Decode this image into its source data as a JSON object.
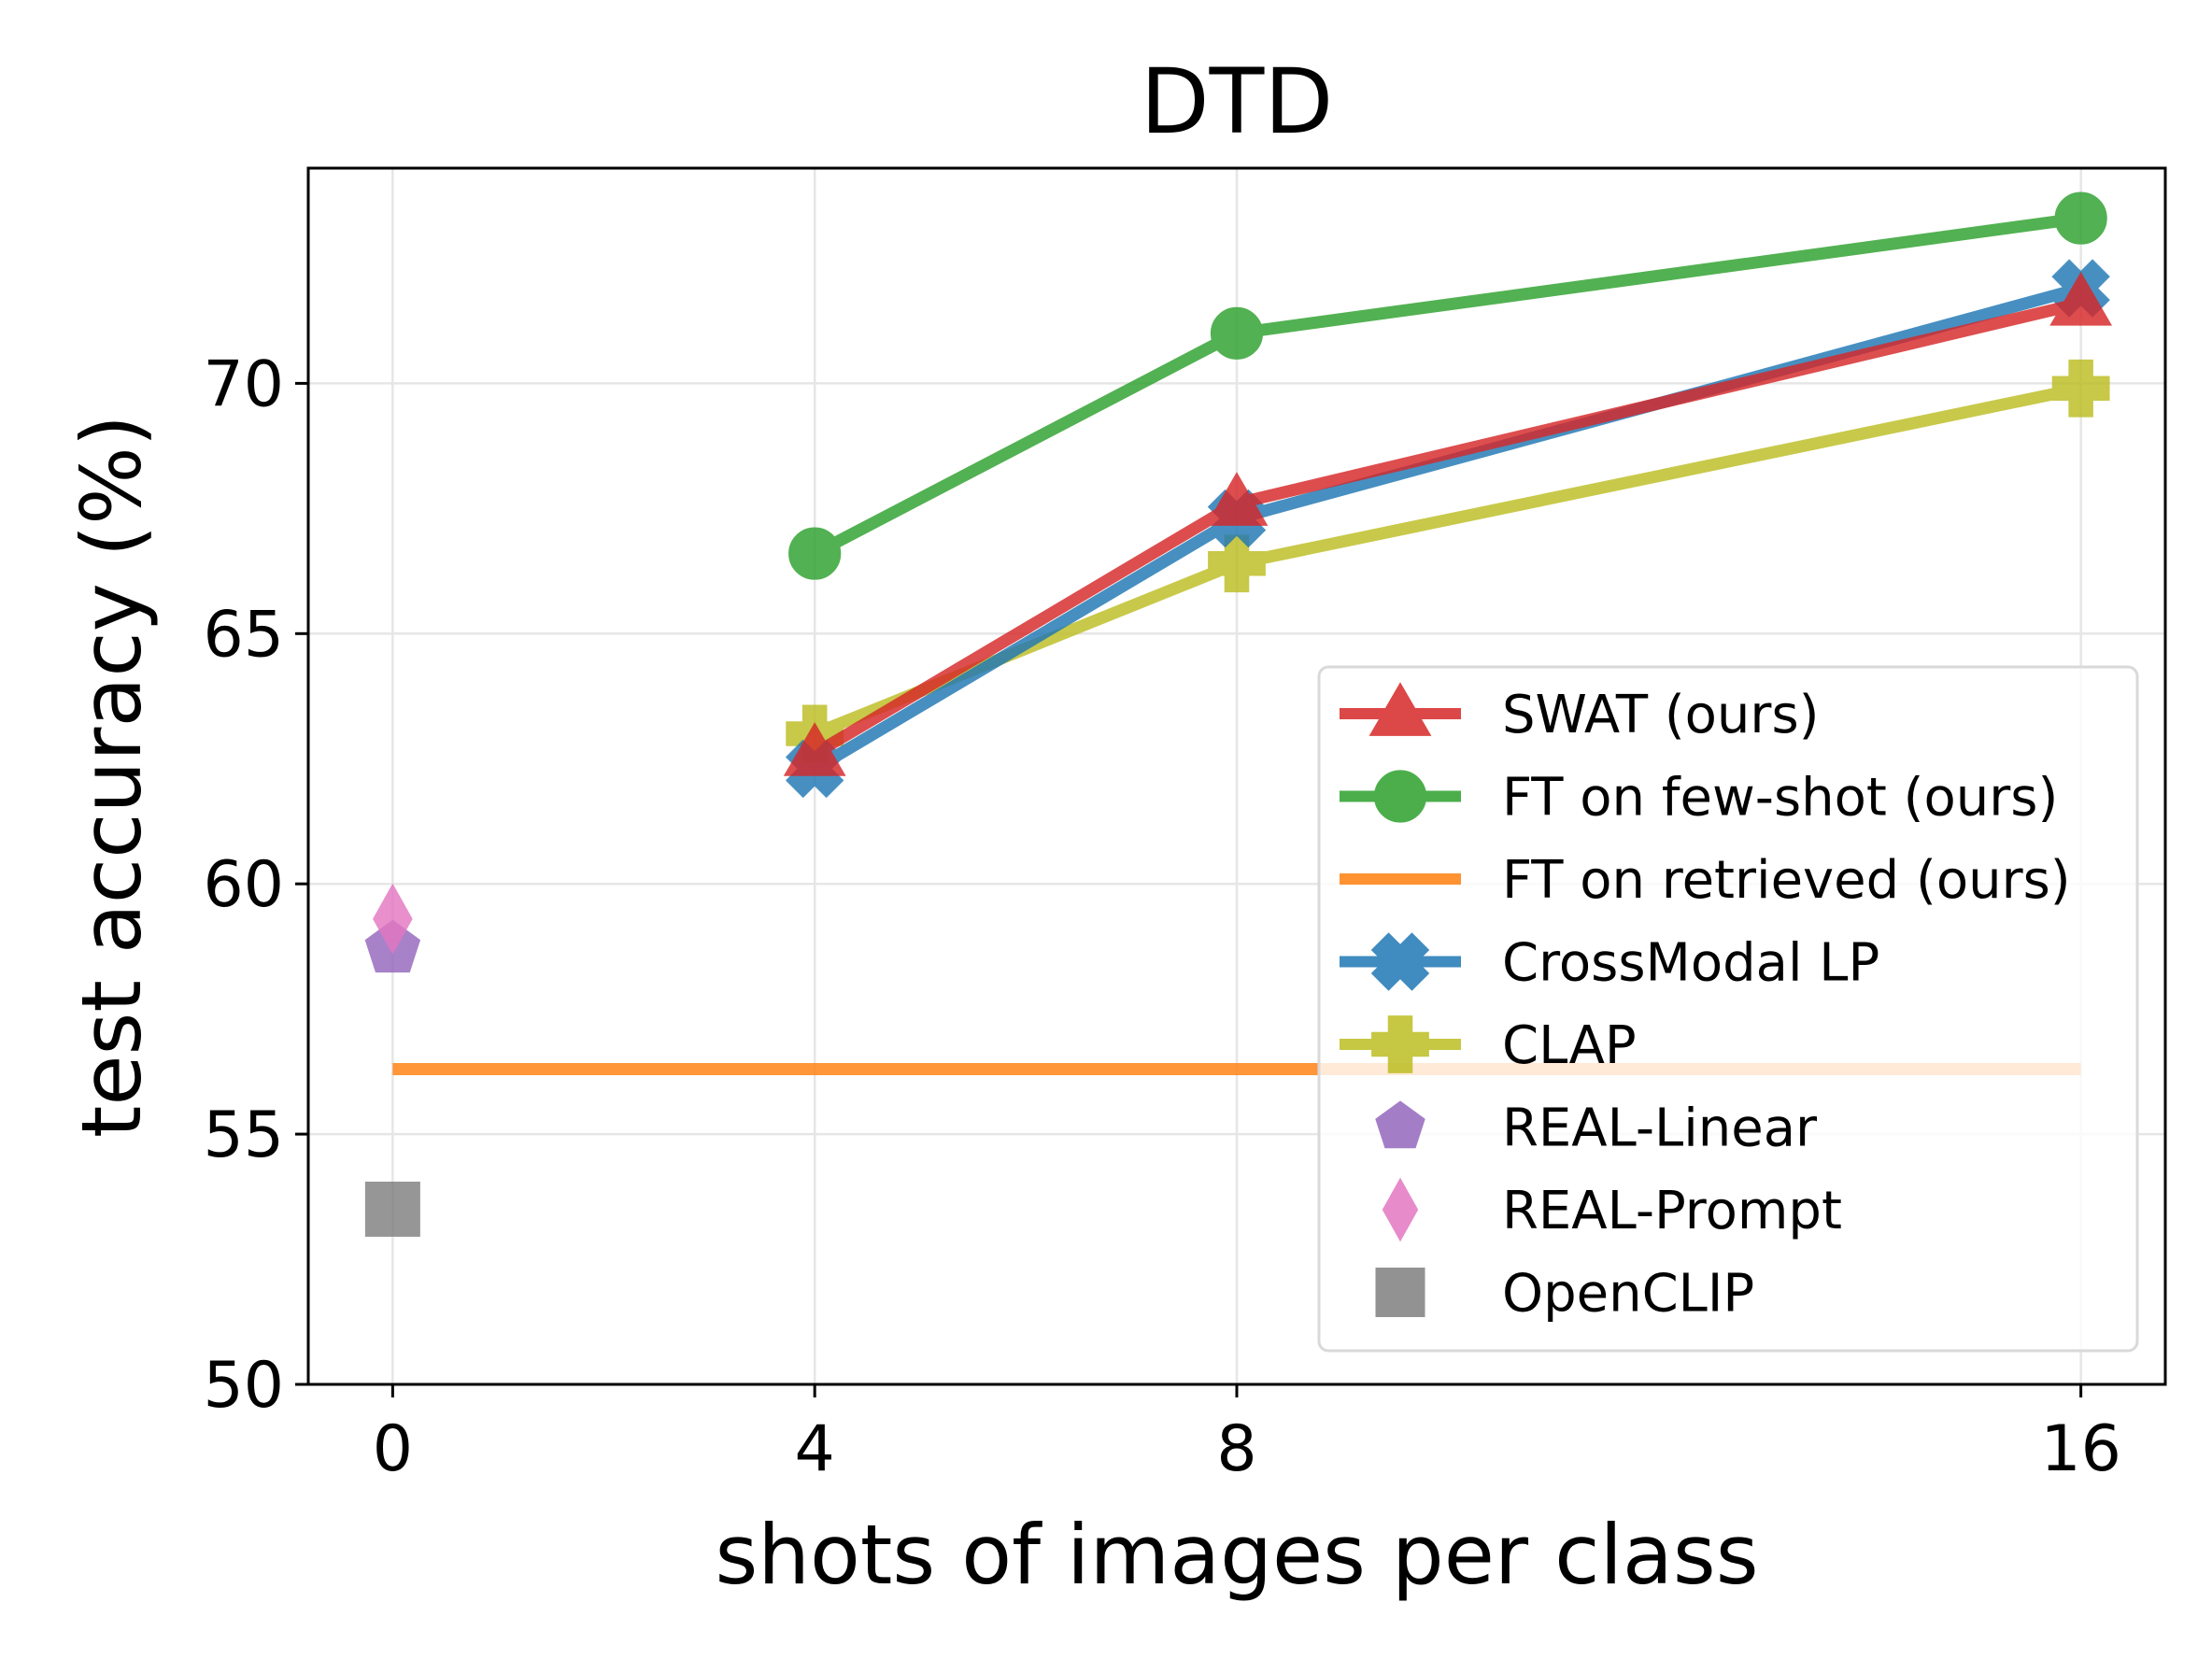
{
  "chart_data": {
    "type": "line",
    "title": "DTD",
    "xlabel": "shots of images per class",
    "ylabel": "test accuracy (%)",
    "x_ticks": [
      0,
      4,
      8,
      16
    ],
    "x_tick_labels": [
      "0",
      "4",
      "8",
      "16"
    ],
    "x_category_positions": [
      0,
      4,
      8,
      16
    ],
    "xlim": [
      -0.8,
      16.8
    ],
    "ylim": [
      50,
      74.3
    ],
    "y_ticks": [
      50,
      55,
      60,
      65,
      70
    ],
    "y_tick_labels": [
      "50",
      "55",
      "60",
      "65",
      "70"
    ],
    "grid": true,
    "legend_position": "lower-right",
    "series": [
      {
        "name": "SWAT (ours)",
        "kind": "line-marker",
        "marker": "triangle",
        "color": "#d62728",
        "x": [
          4,
          8,
          16
        ],
        "y": [
          62.6,
          67.6,
          71.6
        ]
      },
      {
        "name": "FT on few-shot (ours)",
        "kind": "line-marker",
        "marker": "circle",
        "color": "#2ca02c",
        "x": [
          4,
          8,
          16
        ],
        "y": [
          66.6,
          71.0,
          73.3
        ]
      },
      {
        "name": "FT on retrieved (ours)",
        "kind": "hline",
        "marker": "none",
        "color": "#ff7f0e",
        "x": [
          0,
          16
        ],
        "y": [
          56.3,
          56.3
        ]
      },
      {
        "name": "CrossModal LP",
        "kind": "line-marker",
        "marker": "x",
        "color": "#1f77b4",
        "x": [
          4,
          8,
          16
        ],
        "y": [
          62.3,
          67.3,
          71.9
        ]
      },
      {
        "name": "CLAP",
        "kind": "line-marker",
        "marker": "plus",
        "color": "#bcbd22",
        "x": [
          4,
          8,
          16
        ],
        "y": [
          63.0,
          66.4,
          69.9
        ]
      },
      {
        "name": "REAL-Linear",
        "kind": "point",
        "marker": "pentagon",
        "color": "#9467bd",
        "x": [
          0
        ],
        "y": [
          58.7
        ]
      },
      {
        "name": "REAL-Prompt",
        "kind": "point",
        "marker": "diamond",
        "color": "#e377c2",
        "x": [
          0
        ],
        "y": [
          59.3
        ]
      },
      {
        "name": "OpenCLIP",
        "kind": "point",
        "marker": "square",
        "color": "#7f7f7f",
        "x": [
          0
        ],
        "y": [
          53.5
        ]
      }
    ]
  }
}
